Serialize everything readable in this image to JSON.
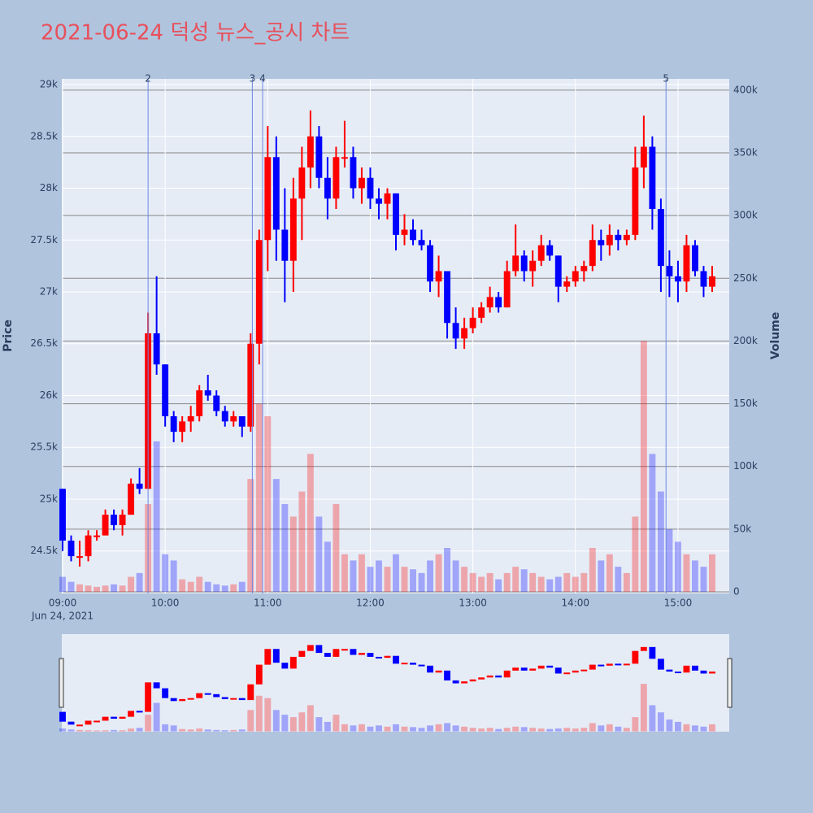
{
  "chart_data": {
    "type": "candlestick",
    "title": "2021-06-24 덕성 뉴스_공시 차트",
    "y_label": "Price",
    "y2_label": "Volume",
    "date_label": "Jun 24, 2021",
    "up_color": "#ff0000",
    "down_color": "#0000ff",
    "x": [
      "09:00",
      "09:05",
      "09:10",
      "09:15",
      "09:20",
      "09:25",
      "09:30",
      "09:35",
      "09:40",
      "09:45",
      "09:50",
      "09:55",
      "10:00",
      "10:05",
      "10:10",
      "10:15",
      "10:20",
      "10:25",
      "10:30",
      "10:35",
      "10:40",
      "10:45",
      "10:50",
      "10:55",
      "11:00",
      "11:05",
      "11:10",
      "11:15",
      "11:20",
      "11:25",
      "11:30",
      "11:35",
      "11:40",
      "11:45",
      "11:50",
      "11:55",
      "12:00",
      "12:05",
      "12:10",
      "12:15",
      "12:20",
      "12:25",
      "12:30",
      "12:35",
      "12:40",
      "12:45",
      "12:50",
      "12:55",
      "13:00",
      "13:05",
      "13:10",
      "13:15",
      "13:20",
      "13:25",
      "13:30",
      "13:35",
      "13:40",
      "13:45",
      "13:50",
      "13:55",
      "14:00",
      "14:05",
      "14:10",
      "14:15",
      "14:20",
      "14:25",
      "14:30",
      "14:35",
      "14:40",
      "14:45",
      "14:50",
      "14:55",
      "15:00",
      "15:05",
      "15:10",
      "15:15",
      "15:20"
    ],
    "open": [
      25100,
      24600,
      24450,
      24450,
      24650,
      24650,
      24850,
      24750,
      24850,
      25150,
      25100,
      26600,
      26300,
      25800,
      25650,
      25750,
      25800,
      26050,
      26000,
      25850,
      25750,
      25800,
      25700,
      26500,
      27500,
      28300,
      27600,
      27300,
      27900,
      28200,
      28500,
      28100,
      27900,
      28300,
      28300,
      28000,
      28100,
      27900,
      27850,
      27950,
      27550,
      27600,
      27500,
      27450,
      27100,
      27200,
      26700,
      26550,
      26650,
      26750,
      26850,
      26950,
      26850,
      27200,
      27350,
      27200,
      27300,
      27450,
      27350,
      27050,
      27100,
      27200,
      27250,
      27500,
      27450,
      27550,
      27500,
      27550,
      28200,
      28400,
      27800,
      27250,
      27150,
      27100,
      27450,
      27200,
      27050
    ],
    "high": [
      25100,
      24650,
      24600,
      24700,
      24700,
      24900,
      24900,
      24900,
      25200,
      25300,
      26800,
      27150,
      26300,
      25850,
      25800,
      25900,
      26100,
      26200,
      26050,
      25900,
      25850,
      25800,
      26600,
      27600,
      28600,
      28500,
      28000,
      28100,
      28400,
      28750,
      28600,
      28300,
      28400,
      28650,
      28400,
      28200,
      28200,
      28000,
      28000,
      27950,
      27750,
      27700,
      27600,
      27500,
      27350,
      27200,
      26850,
      26750,
      26850,
      26900,
      27050,
      27000,
      27300,
      27650,
      27400,
      27400,
      27550,
      27500,
      27350,
      27150,
      27250,
      27300,
      27650,
      27600,
      27650,
      27600,
      27600,
      28400,
      28700,
      28500,
      27900,
      27400,
      27300,
      27550,
      27500,
      27250,
      27250
    ],
    "low": [
      24500,
      24400,
      24350,
      24400,
      24600,
      24650,
      24700,
      24650,
      24850,
      25050,
      25100,
      26200,
      25700,
      25550,
      25550,
      25650,
      25750,
      25950,
      25800,
      25700,
      25700,
      25600,
      25650,
      26300,
      27200,
      27300,
      26900,
      27000,
      27500,
      28000,
      28000,
      27700,
      27800,
      28200,
      27900,
      27850,
      27800,
      27700,
      27700,
      27400,
      27450,
      27450,
      27400,
      27000,
      26950,
      26550,
      26450,
      26450,
      26600,
      26700,
      26800,
      26800,
      26850,
      27150,
      27100,
      27050,
      27250,
      27300,
      26900,
      27000,
      27050,
      27100,
      27200,
      27300,
      27350,
      27400,
      27450,
      27500,
      28000,
      27600,
      27000,
      26950,
      26900,
      27000,
      27150,
      26950,
      27000
    ],
    "close": [
      24600,
      24450,
      24450,
      24650,
      24650,
      24850,
      24750,
      24850,
      25150,
      25100,
      26600,
      26300,
      25800,
      25650,
      25750,
      25800,
      26050,
      26000,
      25850,
      25750,
      25800,
      25700,
      26500,
      27500,
      28300,
      27600,
      27300,
      27900,
      28200,
      28500,
      28100,
      27900,
      28300,
      28300,
      28000,
      28100,
      27900,
      27850,
      27950,
      27550,
      27600,
      27500,
      27450,
      27100,
      27200,
      26700,
      26550,
      26650,
      26750,
      26850,
      26950,
      26850,
      27200,
      27350,
      27200,
      27300,
      27450,
      27350,
      27050,
      27100,
      27200,
      27250,
      27500,
      27450,
      27550,
      27500,
      27550,
      28200,
      28400,
      27800,
      27250,
      27150,
      27100,
      27450,
      27200,
      27050,
      27150
    ],
    "volume": [
      12000,
      8000,
      6000,
      5000,
      4000,
      5000,
      6000,
      5000,
      12000,
      15000,
      70000,
      120000,
      30000,
      25000,
      10000,
      8000,
      12000,
      8000,
      6000,
      5000,
      6000,
      8000,
      90000,
      150000,
      140000,
      90000,
      70000,
      60000,
      80000,
      110000,
      60000,
      40000,
      70000,
      30000,
      25000,
      30000,
      20000,
      25000,
      20000,
      30000,
      20000,
      18000,
      15000,
      25000,
      30000,
      35000,
      25000,
      20000,
      15000,
      12000,
      15000,
      10000,
      15000,
      20000,
      18000,
      15000,
      12000,
      10000,
      12000,
      15000,
      12000,
      15000,
      35000,
      25000,
      30000,
      20000,
      15000,
      60000,
      200000,
      110000,
      80000,
      50000,
      40000,
      30000,
      25000,
      20000,
      30000
    ],
    "markers": [
      {
        "x": "09:50",
        "label": "2"
      },
      {
        "x": "10:51",
        "label": "3"
      },
      {
        "x": "10:57",
        "label": "4"
      },
      {
        "x": "14:53",
        "label": "5"
      }
    ],
    "xlim": [
      "09:00",
      "15:30"
    ],
    "xticks": [
      "09:00",
      "10:00",
      "11:00",
      "12:00",
      "13:00",
      "14:00",
      "15:00"
    ],
    "ylim": [
      24090,
      29055
    ],
    "yticks": [
      {
        "value": 24500,
        "label": "24.5k"
      },
      {
        "value": 25000,
        "label": "25k"
      },
      {
        "value": 25500,
        "label": "25.5k"
      },
      {
        "value": 26000,
        "label": "26k"
      },
      {
        "value": 26500,
        "label": "26.5k"
      },
      {
        "value": 27000,
        "label": "27k"
      },
      {
        "value": 27500,
        "label": "27.5k"
      },
      {
        "value": 28000,
        "label": "28k"
      },
      {
        "value": 28500,
        "label": "28.5k"
      },
      {
        "value": 29000,
        "label": "29k"
      }
    ],
    "y2lim": [
      -1300,
      409000
    ],
    "y2ticks": [
      0,
      {
        "value": 50000,
        "label": "50k"
      },
      {
        "value": 100000,
        "label": "100k"
      },
      {
        "value": 150000,
        "label": "150k"
      },
      {
        "value": 200000,
        "label": "200k"
      },
      {
        "value": 250000,
        "label": "250k"
      },
      {
        "value": 300000,
        "label": "300k"
      },
      {
        "value": 350000,
        "label": "350k"
      },
      {
        "value": 400000,
        "label": "400k"
      }
    ]
  }
}
